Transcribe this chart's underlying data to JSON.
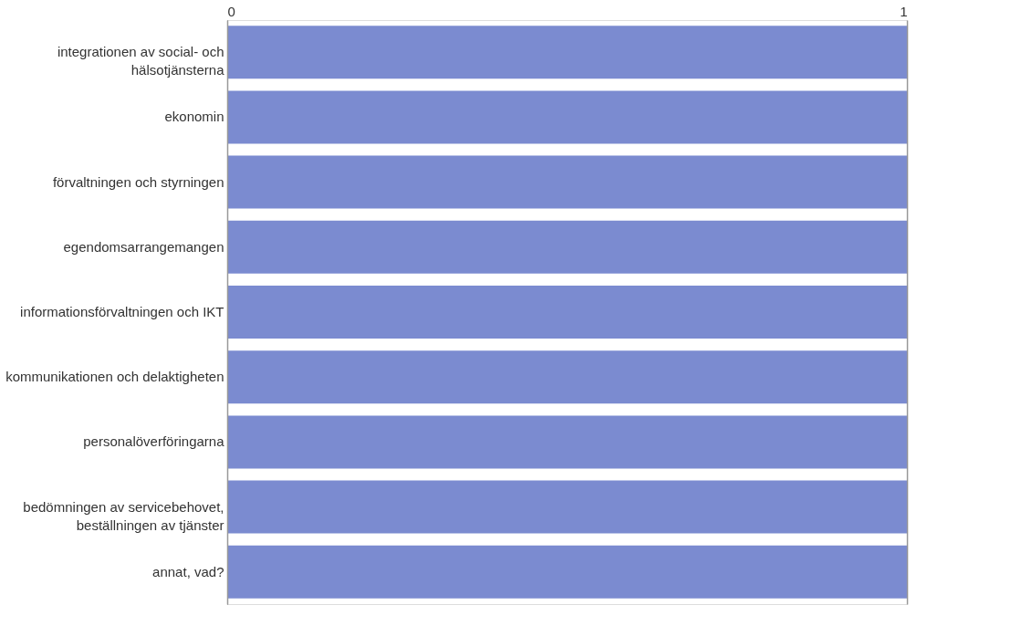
{
  "chart_data": {
    "type": "bar",
    "orientation": "horizontal",
    "categories": [
      "integrationen av social- och\nhälsotjänsterna",
      "ekonomin",
      "förvaltningen och styrningen",
      "egendomsarrangemangen",
      "informationsförvaltningen och IKT",
      "kommunikationen och delaktigheten",
      "personalöverföringarna",
      "bedömningen av servicebehovet,\nbeställningen av tjänster",
      "annat, vad?"
    ],
    "values": [
      1,
      1,
      1,
      1,
      1,
      1,
      1,
      1,
      1
    ],
    "color": "#7b8bd0",
    "xlim": [
      0,
      1
    ],
    "xticks": [
      0,
      1
    ],
    "grid": "x"
  }
}
